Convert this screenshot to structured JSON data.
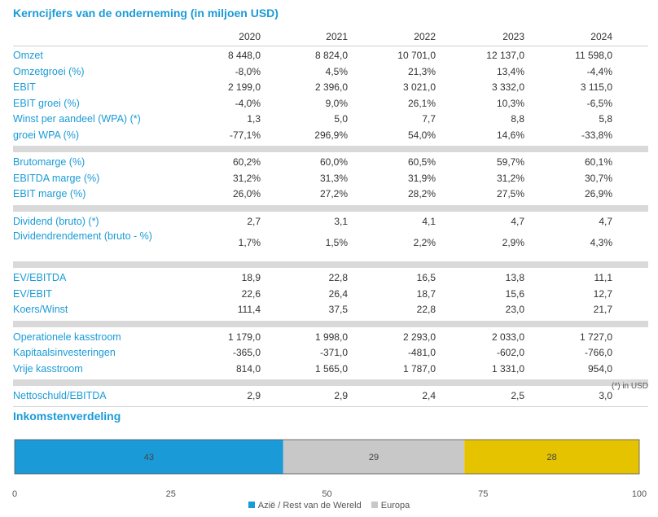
{
  "title": "Kerncijfers van de onderneming (in miljoen USD)",
  "years": [
    "2020",
    "2021",
    "2022",
    "2023",
    "2024"
  ],
  "groups": [
    {
      "rows": [
        {
          "label": "Omzet",
          "values": [
            "8 448,0",
            "8 824,0",
            "10 701,0",
            "12 137,0",
            "11 598,0"
          ]
        },
        {
          "label": "Omzetgroei (%)",
          "values": [
            "-8,0%",
            "4,5%",
            "21,3%",
            "13,4%",
            "-4,4%"
          ]
        },
        {
          "label": "EBIT",
          "values": [
            "2 199,0",
            "2 396,0",
            "3 021,0",
            "3 332,0",
            "3 115,0"
          ]
        },
        {
          "label": "EBIT groei (%)",
          "values": [
            "-4,0%",
            "9,0%",
            "26,1%",
            "10,3%",
            "-6,5%"
          ]
        },
        {
          "label": "Winst per aandeel (WPA) (*)",
          "values": [
            "1,3",
            "5,0",
            "7,7",
            "8,8",
            "5,8"
          ]
        },
        {
          "label": "groei WPA (%)",
          "values": [
            "-77,1%",
            "296,9%",
            "54,0%",
            "14,6%",
            "-33,8%"
          ]
        }
      ]
    },
    {
      "rows": [
        {
          "label": "Brutomarge (%)",
          "values": [
            "60,2%",
            "60,0%",
            "60,5%",
            "59,7%",
            "60,1%"
          ]
        },
        {
          "label": "EBITDA marge (%)",
          "values": [
            "31,2%",
            "31,3%",
            "31,9%",
            "31,2%",
            "30,7%"
          ]
        },
        {
          "label": "EBIT marge (%)",
          "values": [
            "26,0%",
            "27,2%",
            "28,2%",
            "27,5%",
            "26,9%"
          ]
        }
      ]
    },
    {
      "rows": [
        {
          "label": "Dividend (bruto) (*)",
          "values": [
            "2,7",
            "3,1",
            "4,1",
            "4,7",
            "4,7"
          ]
        },
        {
          "label": "Dividendrendement (bruto - %)",
          "values": [
            "1,7%",
            "1,5%",
            "2,2%",
            "2,9%",
            "4,3%"
          ],
          "tall": true
        }
      ]
    },
    {
      "rows": [
        {
          "label": "EV/EBITDA",
          "values": [
            "18,9",
            "22,8",
            "16,5",
            "13,8",
            "11,1"
          ]
        },
        {
          "label": "EV/EBIT",
          "values": [
            "22,6",
            "26,4",
            "18,7",
            "15,6",
            "12,7"
          ]
        },
        {
          "label": "Koers/Winst",
          "values": [
            "111,4",
            "37,5",
            "22,8",
            "23,0",
            "21,7"
          ]
        }
      ]
    },
    {
      "rows": [
        {
          "label": "Operationele kasstroom",
          "values": [
            "1 179,0",
            "1 998,0",
            "2 293,0",
            "2 033,0",
            "1 727,0"
          ]
        },
        {
          "label": "Kapitaalsinvesteringen",
          "values": [
            "-365,0",
            "-371,0",
            "-481,0",
            "-602,0",
            "-766,0"
          ]
        },
        {
          "label": "Vrije kasstroom",
          "values": [
            "814,0",
            "1 565,0",
            "1 787,0",
            "1 331,0",
            "954,0"
          ]
        }
      ]
    },
    {
      "rows": [
        {
          "label": "Nettoschuld/EBITDA",
          "values": [
            "2,9",
            "2,9",
            "2,4",
            "2,5",
            "3,0"
          ]
        }
      ]
    }
  ],
  "footnote": "(*) in USD",
  "chart_data": {
    "type": "bar",
    "title": "Inkomstenverdeling",
    "stacked": true,
    "orientation": "horizontal",
    "series": [
      {
        "name": "Azië / Rest van de Wereld",
        "value": 43,
        "color": "#1a9bd7"
      },
      {
        "name": "Europa",
        "value": 29,
        "color": "#c8c8c8"
      },
      {
        "name": "",
        "value": 28,
        "color": "#e6c300"
      }
    ],
    "xlim": [
      0,
      100
    ],
    "xticks": [
      "0",
      "25",
      "50",
      "75",
      "100"
    ],
    "legend_position": "bottom"
  }
}
